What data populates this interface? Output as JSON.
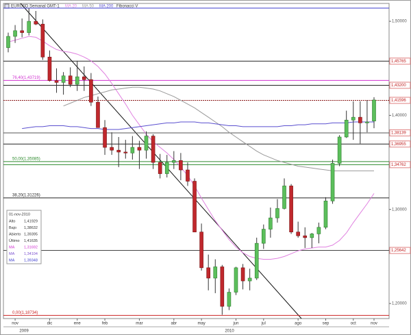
{
  "chart_data": {
    "type": "candlestick",
    "title": "EURUSD Semanal GMT-1",
    "header_extra": "Fibonacci V",
    "categories": [
      null,
      "nov",
      null,
      null,
      null,
      null,
      "dic",
      null,
      null,
      null,
      "ene",
      null,
      null,
      null,
      "feb",
      null,
      null,
      null,
      null,
      "mar",
      null,
      null,
      null,
      null,
      "abr",
      null,
      null,
      null,
      "may",
      null,
      null,
      null,
      null,
      "jun",
      null,
      null,
      null,
      "jul",
      null,
      null,
      null,
      null,
      "ago",
      null,
      null,
      null,
      "sep",
      null,
      null,
      null,
      "oct",
      null,
      null,
      "nov"
    ],
    "year_labels": [
      "2009",
      "2010"
    ],
    "open": [
      1.472,
      1.484,
      1.49,
      1.488,
      1.5,
      1.497,
      1.462,
      1.437,
      1.435,
      1.442,
      1.433,
      1.441,
      1.438,
      1.414,
      1.387,
      1.366,
      1.363,
      1.361,
      1.36,
      1.366,
      1.363,
      1.378,
      1.35,
      1.338,
      1.35,
      1.352,
      1.342,
      1.33,
      1.276,
      1.238,
      1.227,
      1.239,
      1.197,
      1.212,
      1.238,
      1.224,
      1.227,
      1.264,
      1.279,
      1.291,
      1.301,
      1.325,
      1.276,
      1.272,
      1.27,
      1.274,
      1.281,
      1.309,
      1.349,
      1.377,
      1.395,
      1.398,
      1.392,
      1.39395
    ],
    "high": [
      1.488,
      1.496,
      1.503,
      1.514,
      1.511,
      1.502,
      1.469,
      1.45,
      1.446,
      1.451,
      1.458,
      1.452,
      1.445,
      1.42,
      1.395,
      1.382,
      1.377,
      1.374,
      1.378,
      1.373,
      1.383,
      1.38,
      1.359,
      1.358,
      1.362,
      1.36,
      1.35,
      1.333,
      1.285,
      1.252,
      1.247,
      1.241,
      1.216,
      1.239,
      1.242,
      1.237,
      1.27,
      1.284,
      1.302,
      1.311,
      1.333,
      1.327,
      1.287,
      1.281,
      1.275,
      1.286,
      1.313,
      1.353,
      1.379,
      1.405,
      1.415,
      1.415,
      1.416,
      1.41929
    ],
    "low": [
      1.467,
      1.477,
      1.483,
      1.485,
      1.496,
      1.459,
      1.436,
      1.424,
      1.422,
      1.43,
      1.426,
      1.426,
      1.41,
      1.387,
      1.358,
      1.358,
      1.345,
      1.354,
      1.353,
      1.343,
      1.354,
      1.343,
      1.333,
      1.334,
      1.343,
      1.331,
      1.325,
      1.276,
      1.235,
      1.214,
      1.211,
      1.188,
      1.193,
      1.209,
      1.215,
      1.214,
      1.225,
      1.258,
      1.27,
      1.286,
      1.3,
      1.274,
      1.27,
      1.259,
      1.259,
      1.264,
      1.279,
      1.306,
      1.346,
      1.376,
      1.374,
      1.37,
      1.382,
      1.38632
    ],
    "close": [
      1.484,
      1.49,
      1.488,
      1.5,
      1.497,
      1.462,
      1.437,
      1.435,
      1.442,
      1.433,
      1.441,
      1.438,
      1.414,
      1.387,
      1.366,
      1.363,
      1.361,
      1.36,
      1.366,
      1.363,
      1.378,
      1.35,
      1.338,
      1.35,
      1.352,
      1.342,
      1.33,
      1.276,
      1.238,
      1.227,
      1.239,
      1.197,
      1.212,
      1.238,
      1.224,
      1.227,
      1.264,
      1.279,
      1.291,
      1.301,
      1.325,
      1.276,
      1.272,
      1.27,
      1.274,
      1.281,
      1.309,
      1.349,
      1.377,
      1.395,
      1.398,
      1.392,
      1.393,
      1.41635
    ],
    "up_color": "#5cbf5c",
    "down_color": "#c0282d",
    "series": [
      {
        "name": "MA 20",
        "color": "#e080e0",
        "values": [
          1.478,
          1.48,
          1.482,
          1.484,
          1.483,
          1.479,
          1.474,
          1.47,
          1.468,
          1.467,
          1.465,
          1.462,
          1.458,
          1.452,
          1.444,
          1.434,
          1.423,
          1.412,
          1.4,
          1.39,
          1.38,
          1.372,
          1.366,
          1.36,
          1.353,
          1.345,
          1.336,
          1.325,
          1.312,
          1.3,
          1.288,
          1.278,
          1.268,
          1.26,
          1.254,
          1.25,
          1.248,
          1.247,
          1.247,
          1.248,
          1.25,
          1.253,
          1.256,
          1.258,
          1.259,
          1.26,
          1.26,
          1.262,
          1.267,
          1.275,
          1.286,
          1.296,
          1.306,
          1.317
        ]
      },
      {
        "name": "MA 50",
        "color": "#999999",
        "values": [
          null,
          null,
          null,
          null,
          null,
          null,
          null,
          null,
          1.41,
          1.413,
          1.416,
          1.419,
          1.421,
          1.423,
          1.425,
          1.427,
          1.428,
          1.429,
          1.43,
          1.43,
          1.429,
          1.428,
          1.426,
          1.423,
          1.42,
          1.416,
          1.412,
          1.408,
          1.403,
          1.398,
          1.393,
          1.388,
          1.382,
          1.377,
          1.372,
          1.367,
          1.362,
          1.358,
          1.355,
          1.352,
          1.35,
          1.348,
          1.346,
          1.345,
          1.344,
          1.343,
          1.342,
          1.341,
          1.341,
          1.341,
          1.341,
          1.341,
          1.341,
          1.341
        ]
      },
      {
        "name": "MA 200",
        "color": "#5a4fcf",
        "values": [
          null,
          null,
          1.386,
          1.387,
          1.388,
          1.388,
          1.389,
          1.389,
          1.389,
          1.388,
          1.388,
          1.387,
          1.386,
          1.386,
          1.385,
          1.385,
          1.385,
          1.386,
          1.387,
          1.388,
          1.389,
          1.39,
          1.391,
          1.392,
          1.392,
          1.393,
          1.393,
          1.393,
          1.392,
          1.392,
          1.391,
          1.39,
          1.389,
          1.389,
          1.388,
          1.388,
          1.388,
          1.388,
          1.388,
          1.388,
          1.389,
          1.389,
          1.39,
          1.39,
          1.391,
          1.391,
          1.391,
          1.392,
          1.392,
          1.392,
          1.393,
          1.393,
          1.393,
          1.393
        ]
      }
    ],
    "ylim": [
      1.184,
      1.519
    ],
    "yticks": [
      {
        "value": 1.5,
        "label": "1,50000"
      },
      {
        "value": 1.4,
        "label": "1,40000"
      },
      {
        "value": 1.3,
        "label": "1,30000"
      },
      {
        "value": 1.2,
        "label": "1,20000"
      }
    ],
    "levels": [
      {
        "value": 1.514,
        "color": "#3a3acc"
      },
      {
        "value": 1.45765,
        "label": "1,45765",
        "color": "#222222"
      },
      {
        "value": 1.432,
        "label": "1,43200",
        "color": "#222222"
      },
      {
        "value": 1.41596,
        "label": "1,41596",
        "color": "#8b1a1a"
      },
      {
        "value": 1.38139,
        "label": "1,38139",
        "color": "#555555"
      },
      {
        "value": 1.36955,
        "label": "1,36955",
        "color": "#222222"
      },
      {
        "value": 1.34762,
        "label": "1,34762",
        "color": "#2e8b2e"
      },
      {
        "value": 1.25642,
        "label": "1,25642",
        "color": "#444444"
      }
    ],
    "fib_levels": [
      {
        "value": 1.43719,
        "label": "76,40(1,43719)",
        "color": "#d030d0"
      },
      {
        "value": 1.35085,
        "label": "50,00(1,35085)",
        "color": "#2e8b2e"
      },
      {
        "value": 1.31226,
        "label": "38,20(1,31226)",
        "color": "#222222"
      },
      {
        "value": 1.18734,
        "label": "0,00(1,18734)",
        "color": "#cc2222"
      }
    ],
    "info_panel": {
      "date": "01-nov-2010",
      "rows": [
        {
          "label": "Alto",
          "value": "1,41929",
          "color": "#333333"
        },
        {
          "label": "Bajo",
          "value": "1,38632",
          "color": "#333333"
        },
        {
          "label": "Abierto",
          "value": "1,39395",
          "color": "#333333"
        },
        {
          "label": "Último",
          "value": "1,41635",
          "color": "#333333"
        },
        {
          "label": "MA",
          "value": "1,31692",
          "color": "#d030d0"
        },
        {
          "label": "MA",
          "value": "1,34104",
          "color": "#7a4fcf"
        },
        {
          "label": "MA",
          "value": "1,39348",
          "color": "#3a3acc"
        }
      ]
    }
  }
}
